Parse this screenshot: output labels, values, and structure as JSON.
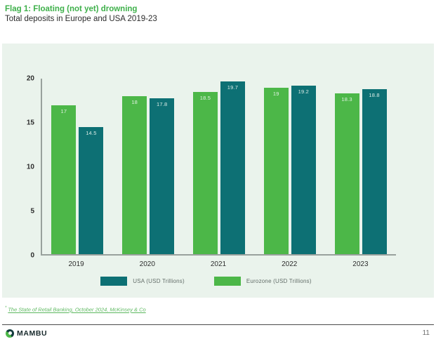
{
  "chart_data": {
    "type": "bar",
    "title": "Flag 1: Floating (not yet) drowning",
    "subtitle": "Total deposits in Europe and USA 2019-23",
    "categories": [
      "2019",
      "2020",
      "2021",
      "2022",
      "2023"
    ],
    "series": [
      {
        "name": "Eurozone (USD Trillions)",
        "color": "#4cb748",
        "values": [
          17,
          18,
          18.5,
          19,
          18.3
        ]
      },
      {
        "name": "USA (USD Trillions)",
        "color": "#0d7074",
        "values": [
          14.5,
          17.8,
          19.7,
          19.2,
          18.8
        ]
      }
    ],
    "legend": [
      {
        "label": "USA (USD Trillions)",
        "color": "#0d7074"
      },
      {
        "label": "Eurozone (USD Trillions)",
        "color": "#4cb748"
      }
    ],
    "legend_position": "bottom",
    "ylim": [
      0,
      20
    ],
    "yticks": [
      0,
      5,
      10,
      15,
      20
    ],
    "grid": false,
    "xlabel": "",
    "ylabel": "",
    "value_labels_shown": true
  },
  "colors": {
    "title_green": "#3eb04a",
    "card_background": "#eaf3ec",
    "axis_gray": "#99a19d",
    "footnote_green": "#5cb85f"
  },
  "footnote": {
    "marker": "*",
    "text": "The State of Retail Banking, October 2024, McKinsey & Co"
  },
  "footer": {
    "brand": "MAMBU",
    "page_number": "11"
  }
}
